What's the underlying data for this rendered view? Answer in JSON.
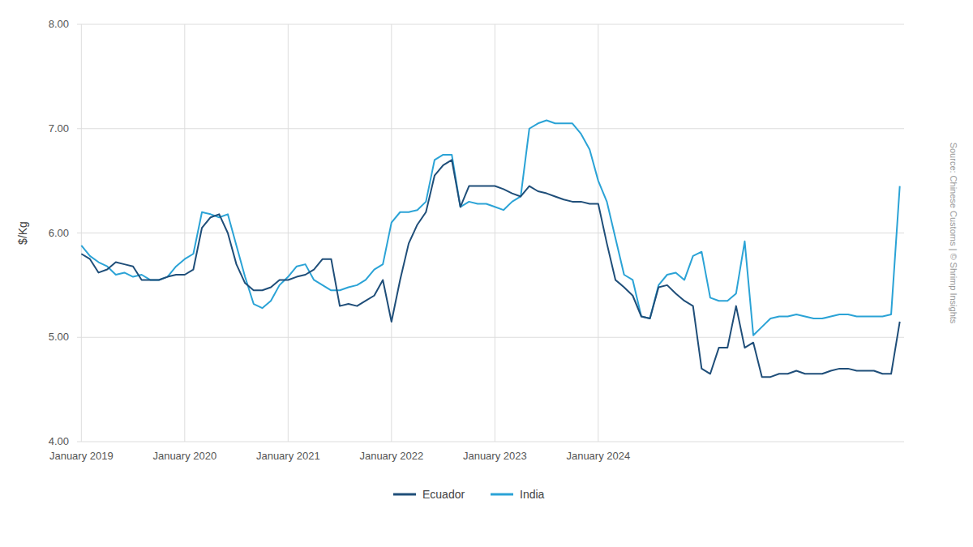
{
  "chart_data": {
    "type": "line",
    "y_label": "$/Kg",
    "annotations": [
      "Source: Chinese Customs | © Shrimp Insights"
    ],
    "categories": [
      "January 2019",
      null,
      null,
      null,
      null,
      null,
      null,
      null,
      null,
      null,
      null,
      null,
      "January 2020",
      null,
      null,
      null,
      null,
      null,
      null,
      null,
      null,
      null,
      null,
      null,
      "January 2021",
      null,
      null,
      null,
      null,
      null,
      null,
      null,
      null,
      null,
      null,
      null,
      "January 2022",
      null,
      null,
      null,
      null,
      null,
      null,
      null,
      null,
      null,
      null,
      null,
      "January 2023",
      null,
      null,
      null,
      null,
      null,
      null,
      null,
      null,
      null,
      null,
      null,
      "January 2024",
      null,
      null,
      null,
      null,
      null,
      null,
      null,
      null,
      null,
      null,
      null,
      null,
      null,
      null,
      null,
      null,
      null,
      null,
      null,
      null,
      null,
      null,
      null,
      null,
      null,
      null,
      null,
      null,
      null,
      null,
      null,
      null,
      null,
      null,
      null
    ],
    "series": [
      {
        "name": "Ecuador",
        "color": "#1f4e79",
        "values": [
          5.8,
          5.75,
          5.62,
          5.65,
          5.72,
          5.7,
          5.68,
          5.55,
          5.55,
          5.55,
          5.58,
          5.6,
          5.6,
          5.65,
          6.05,
          6.15,
          6.18,
          6.0,
          5.7,
          5.52,
          5.45,
          5.45,
          5.48,
          5.55,
          5.55,
          5.58,
          5.6,
          5.65,
          5.75,
          5.75,
          5.3,
          5.32,
          5.3,
          5.35,
          5.4,
          5.55,
          5.15,
          5.55,
          5.9,
          6.08,
          6.2,
          6.55,
          6.65,
          6.7,
          6.25,
          6.45,
          6.45,
          6.45,
          6.45,
          6.42,
          6.38,
          6.35,
          6.45,
          6.4,
          6.38,
          6.35,
          6.32,
          6.3,
          6.3,
          6.28,
          6.28,
          5.9,
          5.55,
          5.48,
          5.4,
          5.2,
          5.18,
          5.48,
          5.5,
          5.42,
          5.35,
          5.3,
          4.7,
          4.65,
          4.9,
          4.9,
          5.3,
          4.9,
          4.95,
          4.62,
          4.62,
          4.65,
          4.65,
          4.68,
          4.65,
          4.65,
          4.65,
          4.68,
          4.7,
          4.7,
          4.68,
          4.68,
          4.68,
          4.65,
          4.65,
          5.15
        ]
      },
      {
        "name": "India",
        "color": "#2ba3d6",
        "values": [
          5.88,
          5.78,
          5.72,
          5.68,
          5.6,
          5.62,
          5.58,
          5.6,
          5.55,
          5.55,
          5.58,
          5.68,
          5.75,
          5.8,
          6.2,
          6.18,
          6.15,
          6.18,
          5.88,
          5.58,
          5.32,
          5.28,
          5.35,
          5.5,
          5.58,
          5.68,
          5.7,
          5.55,
          5.5,
          5.45,
          5.45,
          5.48,
          5.5,
          5.55,
          5.65,
          5.7,
          6.1,
          6.2,
          6.2,
          6.22,
          6.3,
          6.7,
          6.75,
          6.75,
          6.25,
          6.3,
          6.28,
          6.28,
          6.25,
          6.22,
          6.3,
          6.35,
          7.0,
          7.05,
          7.08,
          7.05,
          7.05,
          7.05,
          6.95,
          6.8,
          6.5,
          6.3,
          5.95,
          5.6,
          5.55,
          5.2,
          5.18,
          5.5,
          5.6,
          5.62,
          5.55,
          5.78,
          5.82,
          5.38,
          5.35,
          5.35,
          5.42,
          5.92,
          5.02,
          5.1,
          5.18,
          5.2,
          5.2,
          5.22,
          5.2,
          5.18,
          5.18,
          5.2,
          5.22,
          5.22,
          5.2,
          5.2,
          5.2,
          5.2,
          5.22,
          6.45
        ]
      }
    ],
    "ylim": [
      4.0,
      8.0
    ],
    "yticks": [
      {
        "value": 4.0,
        "label": "4.00"
      },
      {
        "value": 5.0,
        "label": "5.00"
      },
      {
        "value": 6.0,
        "label": "6.00"
      },
      {
        "value": 7.0,
        "label": "7.00"
      },
      {
        "value": 8.0,
        "label": "8.00"
      }
    ],
    "grid": true,
    "legend": "bottom"
  }
}
